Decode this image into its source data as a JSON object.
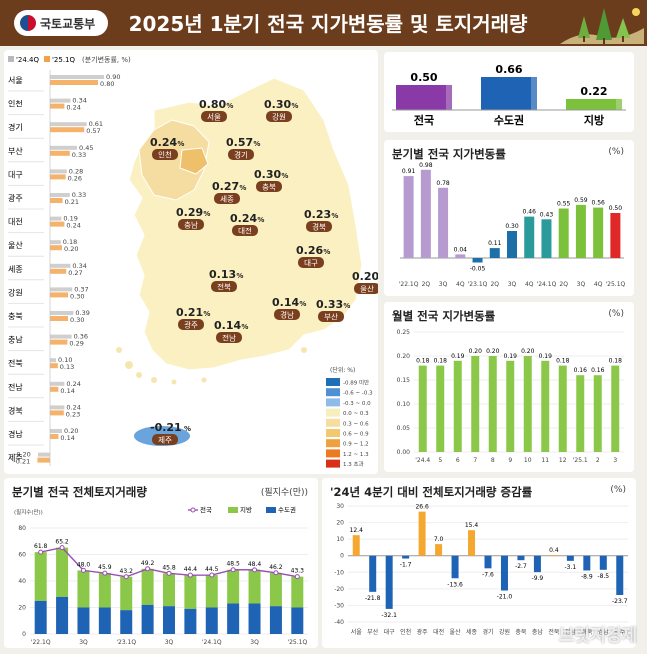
{
  "header": {
    "title": "2025년 1분기 전국 지가변동률 및 토지거래량",
    "logo_text": "국토교통부"
  },
  "left": {
    "legend": [
      "'24.4Q",
      "'25.1Q"
    ],
    "unit": "(분기변동률, %)",
    "colors": {
      "prev": "#b9b9b9",
      "curr": "#f4a24a"
    }
  },
  "regions": [
    {
      "name": "서울",
      "prev": 0.9,
      "curr": 0.8,
      "prev_label": "0.90",
      "curr_label": "0.80"
    },
    {
      "name": "인천",
      "prev": 0.34,
      "curr": 0.24,
      "prev_label": "0.34",
      "curr_label": "0.24"
    },
    {
      "name": "경기",
      "prev": 0.61,
      "curr": 0.57,
      "prev_label": "0.61",
      "curr_label": "0.57"
    },
    {
      "name": "부산",
      "prev": 0.45,
      "curr": 0.33,
      "prev_label": "0.45",
      "curr_label": "0.33"
    },
    {
      "name": "대구",
      "prev": 0.28,
      "curr": 0.26,
      "prev_label": "0.28",
      "curr_label": "0.26"
    },
    {
      "name": "광주",
      "prev": 0.33,
      "curr": 0.21,
      "prev_label": "0.33",
      "curr_label": "0.21"
    },
    {
      "name": "대전",
      "prev": 0.19,
      "curr": 0.24,
      "prev_label": "0.19",
      "curr_label": "0.24"
    },
    {
      "name": "울산",
      "prev": 0.18,
      "curr": 0.2,
      "prev_label": "0.18",
      "curr_label": "0.20"
    },
    {
      "name": "세종",
      "prev": 0.34,
      "curr": 0.27,
      "prev_label": "0.34",
      "curr_label": "0.27"
    },
    {
      "name": "강원",
      "prev": 0.37,
      "curr": 0.3,
      "prev_label": "0.37",
      "curr_label": "0.30"
    },
    {
      "name": "충북",
      "prev": 0.39,
      "curr": 0.3,
      "prev_label": "0.39",
      "curr_label": "0.30"
    },
    {
      "name": "충남",
      "prev": 0.36,
      "curr": 0.29,
      "prev_label": "0.36",
      "curr_label": "0.29"
    },
    {
      "name": "전북",
      "prev": 0.1,
      "curr": 0.13,
      "prev_label": "0.10",
      "curr_label": "0.13"
    },
    {
      "name": "전남",
      "prev": 0.24,
      "curr": 0.14,
      "prev_label": "0.24",
      "curr_label": "0.14"
    },
    {
      "name": "경북",
      "prev": 0.24,
      "curr": 0.23,
      "prev_label": "0.24",
      "curr_label": "0.23"
    },
    {
      "name": "경남",
      "prev": 0.2,
      "curr": 0.14,
      "prev_label": "0.20",
      "curr_label": "0.14"
    },
    {
      "name": "제주",
      "prev": -0.2,
      "curr": -0.21,
      "prev_label": "-0.20",
      "curr_label": "-0.21"
    }
  ],
  "map": {
    "labels": [
      {
        "value": "0.80",
        "unit": "%",
        "name": "서울"
      },
      {
        "value": "0.30",
        "unit": "%",
        "name": "강원"
      },
      {
        "value": "0.24",
        "unit": "%",
        "name": "인천"
      },
      {
        "value": "0.57",
        "unit": "%",
        "name": "경기"
      },
      {
        "value": "0.27",
        "unit": "%",
        "name": "세종"
      },
      {
        "value": "0.30",
        "unit": "%",
        "name": "충북"
      },
      {
        "value": "0.29",
        "unit": "%",
        "name": "충남"
      },
      {
        "value": "0.24",
        "unit": "%",
        "name": "대전"
      },
      {
        "value": "0.23",
        "unit": "%",
        "name": "경북"
      },
      {
        "value": "0.26",
        "unit": "%",
        "name": "대구"
      },
      {
        "value": "0.20",
        "unit": "%",
        "name": "울산"
      },
      {
        "value": "0.13",
        "unit": "%",
        "name": "전북"
      },
      {
        "value": "0.14",
        "unit": "%",
        "name": "경남"
      },
      {
        "value": "0.33",
        "unit": "%",
        "name": "부산"
      },
      {
        "value": "0.21",
        "unit": "%",
        "name": "광주"
      },
      {
        "value": "0.14",
        "unit": "%",
        "name": "전남"
      },
      {
        "value": "-0.21",
        "unit": "%",
        "name": "제주"
      }
    ],
    "legend_title": "(단위: %)",
    "legend": [
      {
        "label": "-0.89 미만",
        "color": "#1f6fb8"
      },
      {
        "label": "-0.6 ~ -0.3",
        "color": "#4f90d4"
      },
      {
        "label": "-0.3 ~ 0.0",
        "color": "#8fbbe8"
      },
      {
        "label": "0.0 ~ 0.3",
        "color": "#f7eec0"
      },
      {
        "label": "0.3 ~ 0.6",
        "color": "#f5dea0"
      },
      {
        "label": "0.6 ~ 0.9",
        "color": "#f2c870"
      },
      {
        "label": "0.9 ~ 1.2",
        "color": "#f0a040"
      },
      {
        "label": "1.2 ~ 1.3",
        "color": "#eb7a20"
      },
      {
        "label": "1.3 초과",
        "color": "#d83018"
      }
    ]
  },
  "summary": {
    "items": [
      {
        "label": "전국",
        "value": 0.5,
        "value_label": "0.50",
        "color": "#8a3aa6"
      },
      {
        "label": "수도권",
        "value": 0.66,
        "value_label": "0.66",
        "color": "#1f63b5"
      },
      {
        "label": "지방",
        "value": 0.22,
        "value_label": "0.22",
        "color": "#7cc13c"
      }
    ]
  },
  "chart_data": [
    {
      "type": "bar",
      "title": "분기별 전국 지가변동률",
      "unit": "(%)",
      "categories": [
        "'22.1Q",
        "2Q",
        "3Q",
        "4Q",
        "'23.1Q",
        "2Q",
        "3Q",
        "4Q",
        "'24.1Q",
        "2Q",
        "3Q",
        "4Q",
        "'25.1Q"
      ],
      "values": [
        0.91,
        0.98,
        0.78,
        0.04,
        -0.05,
        0.11,
        0.3,
        0.46,
        0.43,
        0.55,
        0.59,
        0.56,
        0.5
      ],
      "labels": [
        "0.91",
        "0.98",
        "0.78",
        "0.04",
        "-0.05",
        "0.11",
        "0.30",
        "0.46",
        "0.43",
        "0.55",
        "0.59",
        "0.56",
        "0.50"
      ],
      "colors": [
        "#b69ad0",
        "#b69ad0",
        "#b69ad0",
        "#b69ad0",
        "#1d6fa8",
        "#1d6fa8",
        "#1d6fa8",
        "#2b9a9a",
        "#2b9a9a",
        "#7cc13c",
        "#7cc13c",
        "#7cc13c",
        "#e02828"
      ]
    },
    {
      "type": "bar",
      "title": "월별 전국 지가변동률",
      "unit": "(%)",
      "ylim": [
        0,
        0.25
      ],
      "yticks": [
        "0.00",
        "0.05",
        "0.10",
        "0.15",
        "0.20",
        "0.25"
      ],
      "categories": [
        "'24.4",
        "5",
        "6",
        "7",
        "8",
        "9",
        "10",
        "11",
        "12",
        "'25.1",
        "2",
        "3"
      ],
      "values": [
        0.18,
        0.18,
        0.19,
        0.2,
        0.2,
        0.19,
        0.2,
        0.19,
        0.18,
        0.16,
        0.16,
        0.18
      ],
      "labels": [
        "0.18",
        "0.18",
        "0.19",
        "0.20",
        "0.20",
        "0.19",
        "0.20",
        "0.19",
        "0.18",
        "0.16",
        "0.16",
        "0.18"
      ]
    },
    {
      "type": "bar+line",
      "title": "분기별 전국 전체토지거래량",
      "unit": "(필지수(만))",
      "ylabel": "(필지수(만))",
      "ylim": [
        0,
        80
      ],
      "yticks": [
        "0",
        "20",
        "40",
        "60",
        "80"
      ],
      "legend": [
        "전국",
        "지방",
        "수도권"
      ],
      "categories": [
        "'22.1Q",
        "",
        "3Q",
        "",
        "'23.1Q",
        "",
        "3Q",
        "",
        "'24.1Q",
        "",
        "3Q",
        "",
        "'25.1Q"
      ],
      "series": [
        {
          "name": "전국",
          "values": [
            61.8,
            65.2,
            48.0,
            45.9,
            43.2,
            49.2,
            45.8,
            44.4,
            44.5,
            48.5,
            48.4,
            46.2,
            43.3
          ],
          "labels": [
            "61.8",
            "65.2",
            "48.0",
            "45.9",
            "43.2",
            "49.2",
            "45.8",
            "44.4",
            "44.5",
            "48.5",
            "48.4",
            "46.2",
            "43.3"
          ]
        },
        {
          "name": "수도권",
          "values": [
            25,
            28,
            20,
            20,
            18,
            22,
            21,
            19,
            20,
            23,
            23,
            21,
            20
          ]
        }
      ]
    },
    {
      "type": "bar",
      "title": "'24년 4분기 대비 전체토지거래량 증감률",
      "unit": "(%)",
      "ylim": [
        -40,
        30
      ],
      "yticks": [
        "30",
        "20",
        "10",
        "0",
        "-10",
        "-20",
        "-30",
        "-40"
      ],
      "categories": [
        "서울",
        "부산",
        "대구",
        "인천",
        "광주",
        "대전",
        "울산",
        "세종",
        "경기",
        "강원",
        "충북",
        "충남",
        "전북",
        "전남",
        "경북",
        "경남",
        "제주"
      ],
      "values": [
        12.4,
        -21.8,
        -32.1,
        -1.7,
        26.6,
        7.0,
        -13.6,
        15.4,
        -7.6,
        -21.0,
        -2.7,
        -9.9,
        0.4,
        -3.1,
        -8.9,
        -8.5,
        -23.7
      ],
      "labels": [
        "12.4",
        "-21.8",
        "-32.1",
        "-1.7",
        "26.6",
        "7.0",
        "-13.6",
        "15.4",
        "-7.6",
        "-21.0",
        "-2.7",
        "-9.9",
        "0.4",
        "-3.1",
        "-8.9",
        "-8.5",
        "-23.7"
      ]
    }
  ],
  "watermark": "브릿지경제"
}
